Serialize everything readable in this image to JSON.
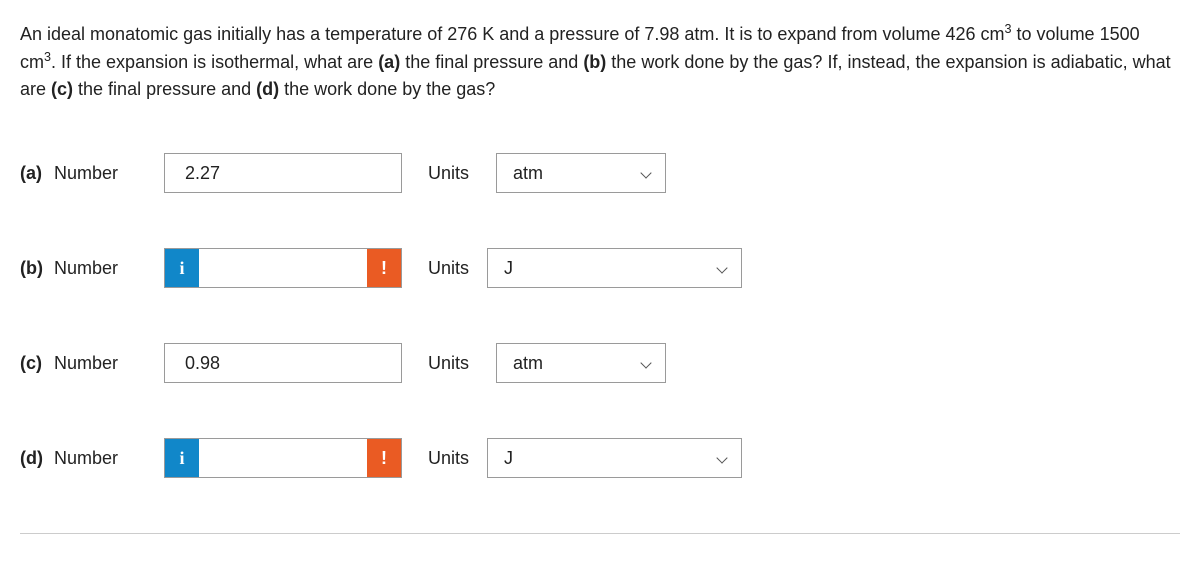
{
  "question": {
    "prefix": "An ideal monatomic gas initially has a temperature of 276 K and a pressure of 7.98 atm. It is to expand from volume 426 cm",
    "sup1": "3",
    "mid1": " to volume 1500 cm",
    "sup2": "3",
    "mid2": ". If the expansion is isothermal, what are ",
    "parta": "(a)",
    "mid3": " the final pressure and ",
    "partb": "(b)",
    "mid4": " the work done by the gas? If, instead, the expansion is adiabatic, what are ",
    "partc": "(c)",
    "mid5": " the final pressure and ",
    "partd": "(d)",
    "mid6": " the work done by the gas?"
  },
  "labels": {
    "number": "Number",
    "units": "Units",
    "info": "i",
    "warn": "!"
  },
  "rows": {
    "a": {
      "letter": "(a)",
      "type": "plain",
      "value": "2.27",
      "unit": "atm",
      "unit_size": "small"
    },
    "b": {
      "letter": "(b)",
      "type": "flagged",
      "value": "",
      "unit": "J",
      "unit_size": "large"
    },
    "c": {
      "letter": "(c)",
      "type": "plain",
      "value": "0.98",
      "unit": "atm",
      "unit_size": "small"
    },
    "d": {
      "letter": "(d)",
      "type": "flagged",
      "value": "",
      "unit": "J",
      "unit_size": "large"
    }
  },
  "colors": {
    "info_bg": "#1187c9",
    "warn_bg": "#ea5b23",
    "border": "#9a9a9a",
    "text": "#222222"
  }
}
